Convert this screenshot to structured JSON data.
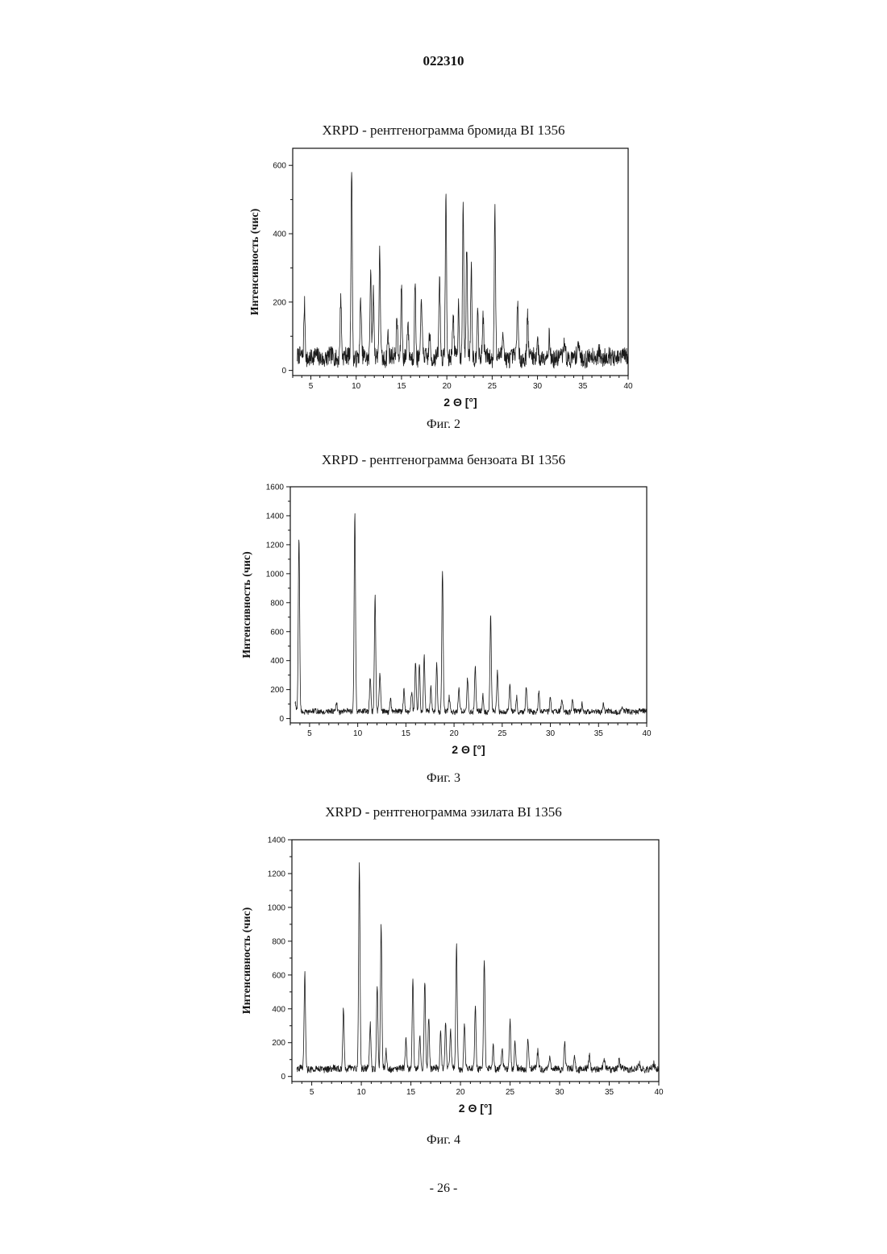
{
  "page": {
    "doc_number": "022310",
    "page_number": "- 26 -"
  },
  "chart_data": [
    {
      "type": "line",
      "title": "XRPD - рентгенограмма бромида BI 1356",
      "caption": "Фиг. 2",
      "xlabel": "2 Θ  [°]",
      "ylabel": "Интенсивность (чис)",
      "xlim": [
        3,
        40
      ],
      "ylim": [
        -15,
        650
      ],
      "xticks": [
        5,
        10,
        15,
        20,
        25,
        30,
        35,
        40
      ],
      "yticks": [
        0,
        200,
        400,
        600
      ],
      "minor_y": 100,
      "baseline": 38,
      "noise": 26,
      "peaks": [
        [
          4.3,
          195
        ],
        [
          8.3,
          225
        ],
        [
          9.5,
          600
        ],
        [
          10.5,
          205
        ],
        [
          11.6,
          310
        ],
        [
          11.9,
          230
        ],
        [
          12.6,
          345
        ],
        [
          13.5,
          110
        ],
        [
          14.5,
          160
        ],
        [
          15.0,
          255
        ],
        [
          15.7,
          140
        ],
        [
          16.5,
          265
        ],
        [
          17.2,
          215
        ],
        [
          18.1,
          115
        ],
        [
          19.2,
          270
        ],
        [
          19.9,
          515
        ],
        [
          20.7,
          165
        ],
        [
          21.3,
          195
        ],
        [
          21.8,
          490
        ],
        [
          22.2,
          370
        ],
        [
          22.7,
          305
        ],
        [
          23.4,
          210
        ],
        [
          24.0,
          160
        ],
        [
          25.3,
          490
        ],
        [
          26.2,
          120
        ],
        [
          27.8,
          200
        ],
        [
          28.9,
          170
        ],
        [
          30.0,
          105
        ],
        [
          31.3,
          100
        ],
        [
          33.0,
          90
        ],
        [
          34.5,
          80
        ],
        [
          36.8,
          70
        ]
      ]
    },
    {
      "type": "line",
      "title": "XRPD - рентгенограмма бензоата BI 1356",
      "caption": "Фиг. 3",
      "xlabel": "2 Θ  [°]",
      "ylabel": "Интенсивность (чис)",
      "xlim": [
        3,
        40
      ],
      "ylim": [
        -30,
        1600
      ],
      "xticks": [
        5,
        10,
        15,
        20,
        25,
        30,
        35,
        40
      ],
      "yticks": [
        0,
        200,
        400,
        600,
        800,
        1000,
        1200,
        1400,
        1600
      ],
      "minor_y": 100,
      "baseline": 48,
      "noise": 18,
      "peaks": [
        [
          3.5,
          110
        ],
        [
          3.9,
          1250
        ],
        [
          7.8,
          110
        ],
        [
          9.7,
          1430
        ],
        [
          11.3,
          290
        ],
        [
          11.8,
          850
        ],
        [
          12.3,
          310
        ],
        [
          13.4,
          150
        ],
        [
          14.8,
          200
        ],
        [
          15.6,
          180
        ],
        [
          16.0,
          380
        ],
        [
          16.4,
          390
        ],
        [
          16.9,
          430
        ],
        [
          17.6,
          210
        ],
        [
          18.2,
          380
        ],
        [
          18.8,
          1020
        ],
        [
          19.5,
          150
        ],
        [
          20.5,
          200
        ],
        [
          21.4,
          280
        ],
        [
          22.2,
          360
        ],
        [
          23.0,
          160
        ],
        [
          23.8,
          700
        ],
        [
          24.5,
          330
        ],
        [
          25.8,
          230
        ],
        [
          26.5,
          150
        ],
        [
          27.5,
          220
        ],
        [
          28.8,
          180
        ],
        [
          30.0,
          150
        ],
        [
          31.2,
          140
        ],
        [
          32.3,
          130
        ],
        [
          33.3,
          110
        ],
        [
          35.5,
          100
        ],
        [
          37.5,
          80
        ]
      ]
    },
    {
      "type": "line",
      "title": "XRPD - рентгенограмма эзилата BI 1356",
      "caption": "Фиг. 4",
      "xlabel": "2 Θ  [°]",
      "ylabel": "Интенсивность (чис)",
      "xlim": [
        3,
        40
      ],
      "ylim": [
        -30,
        1400
      ],
      "xticks": [
        5,
        10,
        15,
        20,
        25,
        30,
        35,
        40
      ],
      "yticks": [
        0,
        200,
        400,
        600,
        800,
        1000,
        1200,
        1400
      ],
      "minor_y": 100,
      "baseline": 45,
      "noise": 20,
      "peaks": [
        [
          4.3,
          610
        ],
        [
          8.2,
          410
        ],
        [
          9.8,
          1250
        ],
        [
          10.9,
          310
        ],
        [
          11.6,
          540
        ],
        [
          12.0,
          890
        ],
        [
          12.5,
          150
        ],
        [
          14.5,
          220
        ],
        [
          15.2,
          590
        ],
        [
          15.9,
          240
        ],
        [
          16.4,
          570
        ],
        [
          16.8,
          360
        ],
        [
          18.0,
          260
        ],
        [
          18.5,
          310
        ],
        [
          19.0,
          260
        ],
        [
          19.6,
          780
        ],
        [
          20.4,
          320
        ],
        [
          21.5,
          410
        ],
        [
          22.4,
          700
        ],
        [
          23.3,
          180
        ],
        [
          24.2,
          160
        ],
        [
          25.0,
          340
        ],
        [
          25.5,
          200
        ],
        [
          26.8,
          230
        ],
        [
          27.8,
          150
        ],
        [
          29.0,
          120
        ],
        [
          30.5,
          210
        ],
        [
          31.5,
          140
        ],
        [
          33.0,
          130
        ],
        [
          34.5,
          100
        ],
        [
          36.0,
          90
        ],
        [
          38.0,
          80
        ],
        [
          39.5,
          70
        ]
      ]
    }
  ]
}
